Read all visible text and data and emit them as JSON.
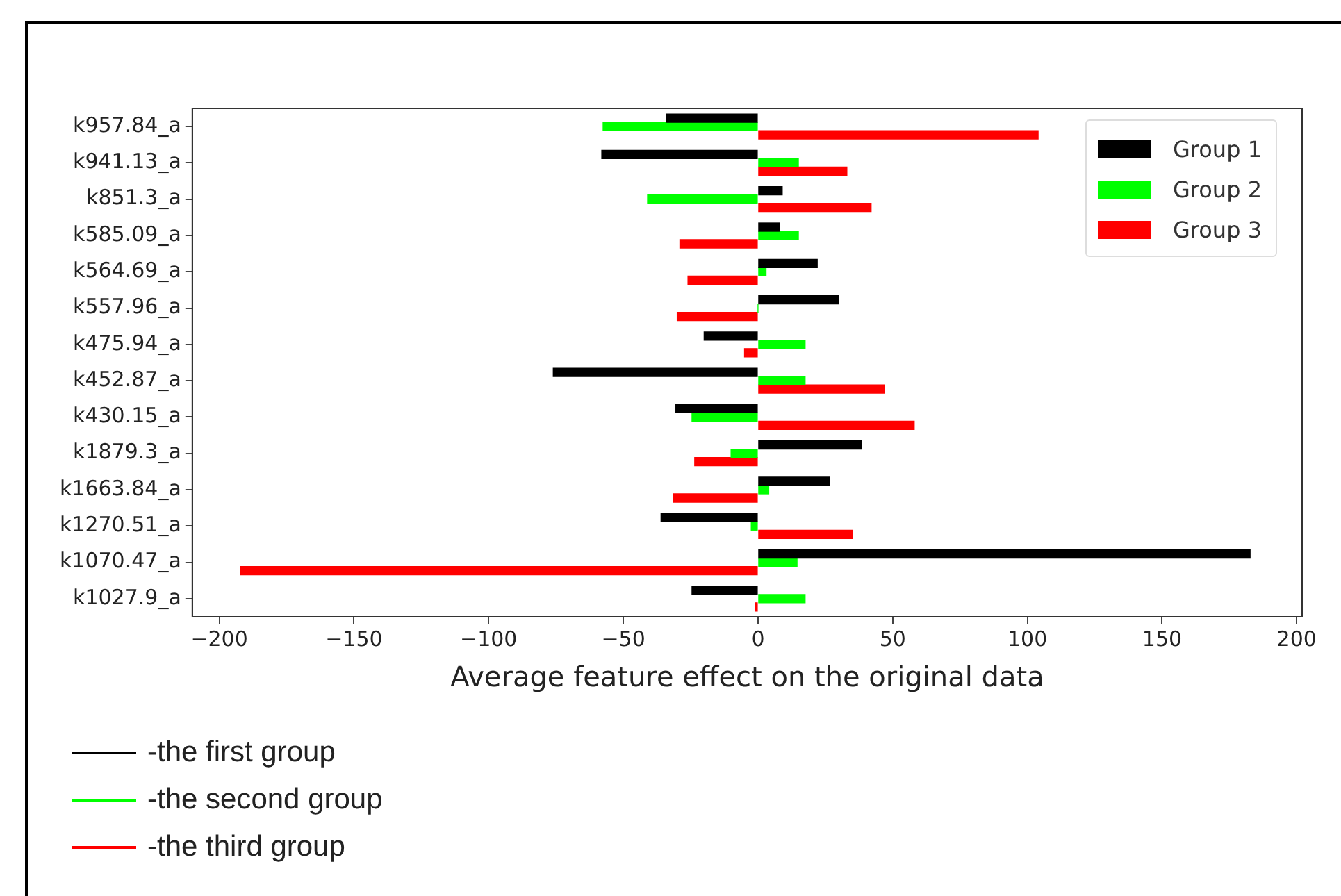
{
  "chart_data": {
    "type": "bar",
    "orientation": "horizontal",
    "xlabel": "Average feature effect on the original data",
    "categories": [
      "k957.84_a",
      "k941.13_a",
      "k851.3_a",
      "k585.09_a",
      "k564.69_a",
      "k557.96_a",
      "k475.94_a",
      "k452.87_a",
      "k430.15_a",
      "k1879.3_a",
      "k1663.84_a",
      "k1270.51_a",
      "k1070.47_a",
      "k1027.9_a"
    ],
    "series": [
      {
        "name": "Group 1",
        "color": "#000000",
        "values": [
          -34,
          -58,
          9,
          8,
          22,
          30,
          -20,
          -76,
          -30.5,
          38.5,
          26.5,
          -36,
          182.7,
          -24.5
        ]
      },
      {
        "name": "Group 2",
        "color": "#00ff00",
        "values": [
          -57.5,
          15,
          -41,
          15,
          3,
          0,
          17.5,
          17.5,
          -24.5,
          -10,
          4,
          -2.5,
          14.5,
          17.5
        ]
      },
      {
        "name": "Group 3",
        "color": "#ff0000",
        "values": [
          104,
          33,
          42,
          -29,
          -26,
          -30,
          -5,
          47,
          58,
          -23.5,
          -31.5,
          35,
          -192,
          -1
        ]
      }
    ],
    "xlim": [
      -210,
      202
    ],
    "xticks": [
      {
        "value": -200,
        "label": "−200"
      },
      {
        "value": -150,
        "label": "−150"
      },
      {
        "value": -100,
        "label": "−100"
      },
      {
        "value": -50,
        "label": "−50"
      },
      0,
      50,
      100,
      150,
      200
    ],
    "grid": false,
    "legend": "top right",
    "annotations": [
      "-the first group",
      "-the second group",
      "-the third group"
    ]
  }
}
